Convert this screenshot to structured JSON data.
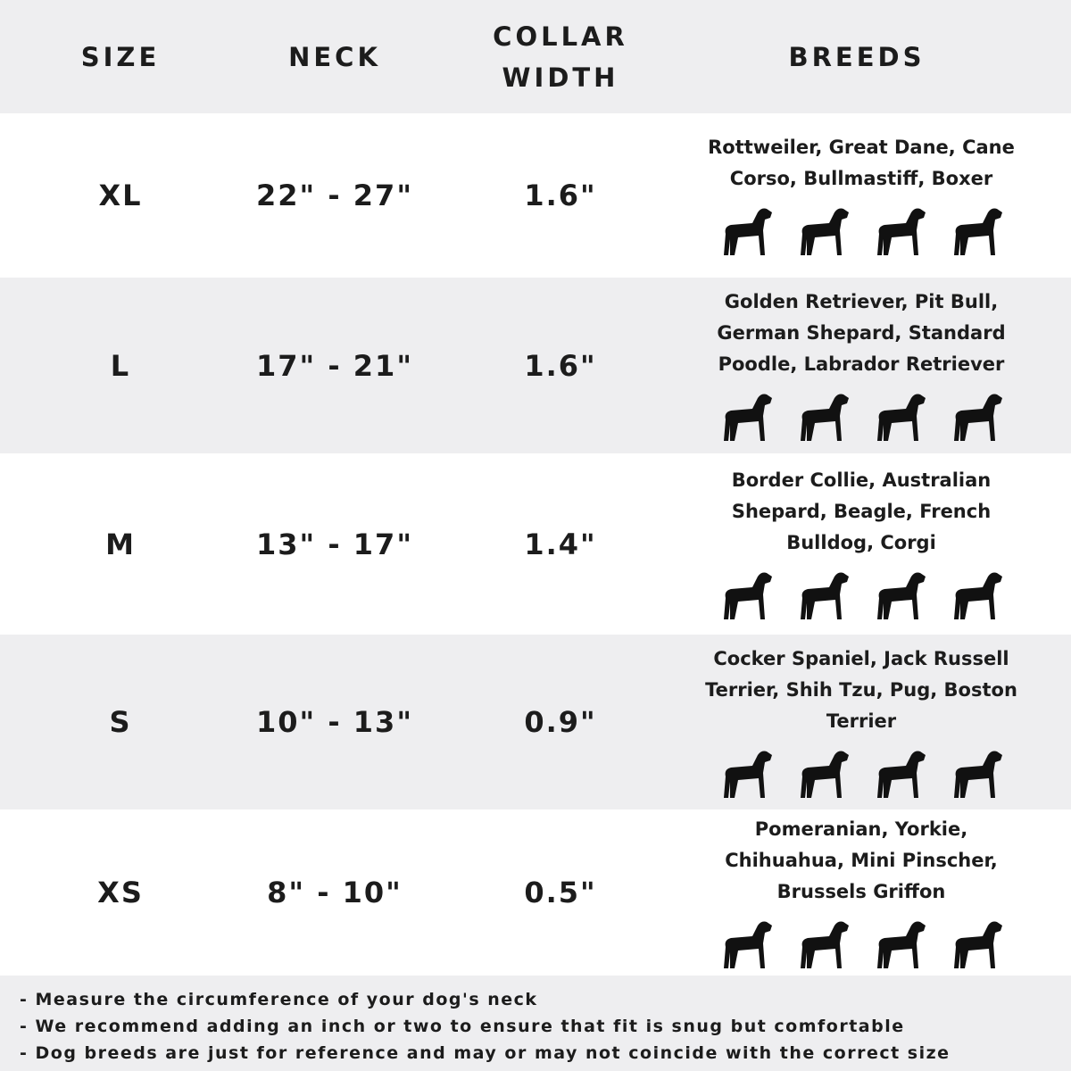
{
  "header": {
    "size": "SIZE",
    "neck": "NECK",
    "collar_width": "COLLAR WIDTH",
    "breeds": "BREEDS"
  },
  "rows": [
    {
      "size": "XL",
      "neck": "22\" - 27\"",
      "width": "1.6\"",
      "breeds": "Rottweiler, Great Dane, Cane Corso, Bullmastiff, Boxer",
      "icons": [
        "rottweiler-icon",
        "great-dane-icon",
        "doberman-icon",
        "bullmastiff-icon"
      ]
    },
    {
      "size": "L",
      "neck": "17\" - 21\"",
      "width": "1.6\"",
      "breeds": "Golden Retriever, Pit Bull, German Shepard, Standard Poodle, Labrador Retriever",
      "icons": [
        "golden-retriever-icon",
        "labrador-icon",
        "poodle-icon",
        "german-shepherd-icon"
      ]
    },
    {
      "size": "M",
      "neck": "13\" - 17\"",
      "width": "1.4\"",
      "breeds": "Border Collie, Australian Shepard, Beagle, French Bulldog, Corgi",
      "icons": [
        "collie-icon",
        "beagle-icon",
        "french-bulldog-icon",
        "corgi-icon"
      ]
    },
    {
      "size": "S",
      "neck": "10\" - 13\"",
      "width": "0.9\"",
      "breeds": "Cocker Spaniel, Jack Russell Terrier, Shih Tzu, Pug, Boston Terrier",
      "icons": [
        "cocker-spaniel-icon",
        "jack-russell-icon",
        "shih-tzu-icon",
        "pug-icon"
      ]
    },
    {
      "size": "XS",
      "neck": "8\" - 10\"",
      "width": "0.5\"",
      "breeds": "Pomeranian, Yorkie, Chihuahua, Mini Pinscher, Brussels Griffon",
      "icons": [
        "pomeranian-icon",
        "yorkie-icon",
        "chihuahua-icon",
        "mini-pinscher-icon"
      ]
    }
  ],
  "notes": [
    "- Measure the circumference of your dog's neck",
    "- We recommend adding an inch or two to ensure that fit is snug but comfortable",
    "- Dog breeds are just for reference and may or may not coincide with the correct size"
  ]
}
